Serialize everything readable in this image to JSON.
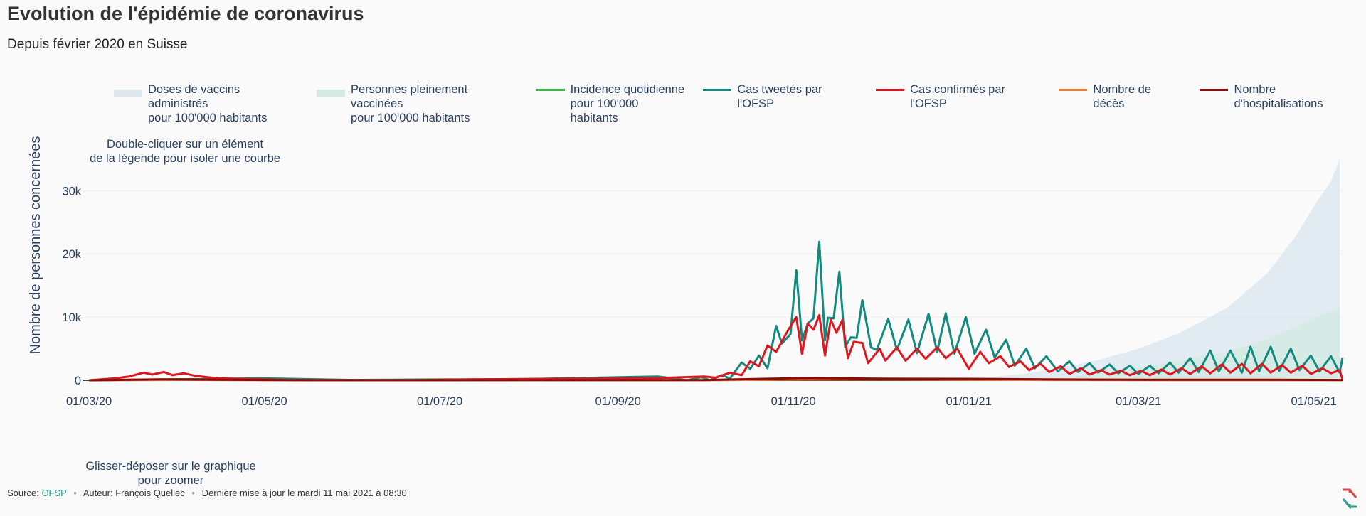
{
  "header": {
    "title": "Evolution de l'épidémie de coronavirus",
    "subtitle": "Depuis février 2020 en Suisse"
  },
  "legend": [
    {
      "label": "Doses de vaccins administrés\npour 100'000 habitants",
      "color": "#dde8ef",
      "kind": "area"
    },
    {
      "label": "Personnes pleinement vaccinées\npour 100'000 habitants",
      "color": "#d4ebe3",
      "kind": "area"
    },
    {
      "label": "Incidence quotidienne\npour 100'000 habitants",
      "color": "#3bb143",
      "kind": "line"
    },
    {
      "label": "Cas tweetés par l'OFSP",
      "color": "#128a7d",
      "kind": "line"
    },
    {
      "label": "Cas confirmés par l'OFSP",
      "color": "#e0161f",
      "kind": "line"
    },
    {
      "label": "Nombre de décès",
      "color": "#f07b32",
      "kind": "line"
    },
    {
      "label": "Nombre d'hospitalisations",
      "color": "#8b0b0b",
      "kind": "line"
    }
  ],
  "hints": {
    "double_click": "Double-cliquer sur un élément\nde la légende pour isoler une courbe",
    "drag": "Glisser-déposer sur le graphique\npour zoomer"
  },
  "footer": {
    "source_label": "Source:",
    "source_link": "OFSP",
    "author": "Auteur: François Quellec",
    "updated": "Dernière mise à jour le mardi 11 mai 2021 à 08:30"
  },
  "chart_data": {
    "type": "line",
    "xlabel": "",
    "ylabel": "Nombre de personnes concernées",
    "x_range": [
      "2020-02-28",
      "2021-05-11"
    ],
    "ylim": [
      0,
      36000
    ],
    "y_ticks": [
      {
        "value": 0,
        "label": "0"
      },
      {
        "value": 10000,
        "label": "10k"
      },
      {
        "value": 20000,
        "label": "20k"
      },
      {
        "value": 30000,
        "label": "30k"
      }
    ],
    "x_ticks": [
      {
        "date": "2020-03-01",
        "label": "01/03/20"
      },
      {
        "date": "2020-05-01",
        "label": "01/05/20"
      },
      {
        "date": "2020-07-01",
        "label": "01/07/20"
      },
      {
        "date": "2020-09-01",
        "label": "01/09/20"
      },
      {
        "date": "2020-11-01",
        "label": "01/11/20"
      },
      {
        "date": "2021-01-01",
        "label": "01/01/21"
      },
      {
        "date": "2021-03-01",
        "label": "01/03/21"
      },
      {
        "date": "2021-05-01",
        "label": "01/05/21"
      }
    ],
    "grid": true,
    "legend_position": "top",
    "series": [
      {
        "name": "Doses de vaccins administrés pour 100'000 habitants",
        "kind": "area",
        "color": "#dde8ef",
        "points": [
          [
            "2020-12-23",
            0
          ],
          [
            "2021-01-05",
            300
          ],
          [
            "2021-01-20",
            1000
          ],
          [
            "2021-02-01",
            1900
          ],
          [
            "2021-02-15",
            3200
          ],
          [
            "2021-03-01",
            5000
          ],
          [
            "2021-03-15",
            7400
          ],
          [
            "2021-04-01",
            11500
          ],
          [
            "2021-04-15",
            17000
          ],
          [
            "2021-04-25",
            23000
          ],
          [
            "2021-05-01",
            27500
          ],
          [
            "2021-05-07",
            31500
          ],
          [
            "2021-05-10",
            35000
          ]
        ]
      },
      {
        "name": "Personnes pleinement vaccinées pour 100'000 habitants",
        "kind": "area",
        "color": "#d4ebe3",
        "points": [
          [
            "2021-01-15",
            0
          ],
          [
            "2021-02-01",
            400
          ],
          [
            "2021-02-15",
            1000
          ],
          [
            "2021-03-01",
            2000
          ],
          [
            "2021-03-15",
            3000
          ],
          [
            "2021-04-01",
            4500
          ],
          [
            "2021-04-15",
            6500
          ],
          [
            "2021-05-01",
            9800
          ],
          [
            "2021-05-10",
            11500
          ]
        ]
      },
      {
        "name": "Cas tweetés par l'OFSP",
        "kind": "line",
        "color": "#128a7d",
        "points": [
          [
            "2020-03-01",
            0
          ],
          [
            "2020-04-10",
            200
          ],
          [
            "2020-05-01",
            300
          ],
          [
            "2020-06-01",
            50
          ],
          [
            "2020-08-01",
            200
          ],
          [
            "2020-09-15",
            600
          ],
          [
            "2020-09-25",
            0
          ],
          [
            "2020-09-30",
            500
          ],
          [
            "2020-10-03",
            0
          ],
          [
            "2020-10-07",
            800
          ],
          [
            "2020-10-10",
            300
          ],
          [
            "2020-10-14",
            2800
          ],
          [
            "2020-10-17",
            1800
          ],
          [
            "2020-10-20",
            3900
          ],
          [
            "2020-10-23",
            1900
          ],
          [
            "2020-10-26",
            8600
          ],
          [
            "2020-10-28",
            5800
          ],
          [
            "2020-10-31",
            7300
          ],
          [
            "2020-11-02",
            17400
          ],
          [
            "2020-11-04",
            6300
          ],
          [
            "2020-11-06",
            9000
          ],
          [
            "2020-11-08",
            9800
          ],
          [
            "2020-11-10",
            21900
          ],
          [
            "2020-11-12",
            6300
          ],
          [
            "2020-11-13",
            9900
          ],
          [
            "2020-11-15",
            9800
          ],
          [
            "2020-11-17",
            17200
          ],
          [
            "2020-11-19",
            5300
          ],
          [
            "2020-11-21",
            6800
          ],
          [
            "2020-11-23",
            6700
          ],
          [
            "2020-11-25",
            12700
          ],
          [
            "2020-11-28",
            5200
          ],
          [
            "2020-11-30",
            4800
          ],
          [
            "2020-12-04",
            9700
          ],
          [
            "2020-12-07",
            4800
          ],
          [
            "2020-12-11",
            9600
          ],
          [
            "2020-12-14",
            4300
          ],
          [
            "2020-12-18",
            10500
          ],
          [
            "2020-12-21",
            4500
          ],
          [
            "2020-12-24",
            10600
          ],
          [
            "2020-12-27",
            4200
          ],
          [
            "2020-12-31",
            10000
          ],
          [
            "2021-01-03",
            4200
          ],
          [
            "2021-01-07",
            8000
          ],
          [
            "2021-01-10",
            3600
          ],
          [
            "2021-01-14",
            6400
          ],
          [
            "2021-01-17",
            2300
          ],
          [
            "2021-01-21",
            5000
          ],
          [
            "2021-01-24",
            1900
          ],
          [
            "2021-01-28",
            3800
          ],
          [
            "2021-02-01",
            1400
          ],
          [
            "2021-02-05",
            3000
          ],
          [
            "2021-02-08",
            1300
          ],
          [
            "2021-02-12",
            2700
          ],
          [
            "2021-02-15",
            1200
          ],
          [
            "2021-02-19",
            2500
          ],
          [
            "2021-02-22",
            1100
          ],
          [
            "2021-02-26",
            2300
          ],
          [
            "2021-03-01",
            1000
          ],
          [
            "2021-03-05",
            2300
          ],
          [
            "2021-03-08",
            1100
          ],
          [
            "2021-03-12",
            2800
          ],
          [
            "2021-03-15",
            1200
          ],
          [
            "2021-03-19",
            3500
          ],
          [
            "2021-03-22",
            1300
          ],
          [
            "2021-03-26",
            4700
          ],
          [
            "2021-03-29",
            1400
          ],
          [
            "2021-04-02",
            4700
          ],
          [
            "2021-04-06",
            1200
          ],
          [
            "2021-04-09",
            5300
          ],
          [
            "2021-04-12",
            1400
          ],
          [
            "2021-04-16",
            5300
          ],
          [
            "2021-04-19",
            1500
          ],
          [
            "2021-04-23",
            5000
          ],
          [
            "2021-04-26",
            1600
          ],
          [
            "2021-04-30",
            3900
          ],
          [
            "2021-05-03",
            1400
          ],
          [
            "2021-05-07",
            3800
          ],
          [
            "2021-05-10",
            1200
          ],
          [
            "2021-05-11",
            3600
          ]
        ]
      },
      {
        "name": "Cas confirmés par l'OFSP",
        "kind": "line",
        "color": "#e0161f",
        "points": [
          [
            "2020-03-01",
            0
          ],
          [
            "2020-03-10",
            300
          ],
          [
            "2020-03-15",
            600
          ],
          [
            "2020-03-20",
            1200
          ],
          [
            "2020-03-23",
            900
          ],
          [
            "2020-03-27",
            1300
          ],
          [
            "2020-03-30",
            800
          ],
          [
            "2020-04-03",
            1100
          ],
          [
            "2020-04-07",
            700
          ],
          [
            "2020-04-11",
            500
          ],
          [
            "2020-04-15",
            300
          ],
          [
            "2020-04-25",
            200
          ],
          [
            "2020-05-10",
            50
          ],
          [
            "2020-06-15",
            0
          ],
          [
            "2020-07-15",
            150
          ],
          [
            "2020-08-15",
            250
          ],
          [
            "2020-09-15",
            350
          ],
          [
            "2020-10-01",
            600
          ],
          [
            "2020-10-05",
            400
          ],
          [
            "2020-10-10",
            1200
          ],
          [
            "2020-10-14",
            800
          ],
          [
            "2020-10-17",
            3000
          ],
          [
            "2020-10-20",
            2200
          ],
          [
            "2020-10-23",
            5500
          ],
          [
            "2020-10-26",
            4500
          ],
          [
            "2020-10-30",
            7800
          ],
          [
            "2020-11-02",
            10000
          ],
          [
            "2020-11-04",
            4200
          ],
          [
            "2020-11-06",
            9000
          ],
          [
            "2020-11-08",
            8000
          ],
          [
            "2020-11-10",
            10300
          ],
          [
            "2020-11-12",
            3900
          ],
          [
            "2020-11-14",
            9600
          ],
          [
            "2020-11-16",
            7500
          ],
          [
            "2020-11-18",
            9500
          ],
          [
            "2020-11-20",
            3500
          ],
          [
            "2020-11-22",
            6100
          ],
          [
            "2020-11-25",
            5900
          ],
          [
            "2020-11-27",
            2700
          ],
          [
            "2020-12-01",
            5000
          ],
          [
            "2020-12-03",
            3100
          ],
          [
            "2020-12-07",
            5200
          ],
          [
            "2020-12-10",
            3100
          ],
          [
            "2020-12-14",
            5000
          ],
          [
            "2020-12-17",
            3400
          ],
          [
            "2020-12-21",
            5200
          ],
          [
            "2020-12-24",
            3500
          ],
          [
            "2020-12-28",
            5000
          ],
          [
            "2021-01-01",
            1800
          ],
          [
            "2021-01-05",
            4500
          ],
          [
            "2021-01-08",
            2700
          ],
          [
            "2021-01-12",
            3800
          ],
          [
            "2021-01-15",
            2100
          ],
          [
            "2021-01-19",
            3000
          ],
          [
            "2021-01-22",
            1600
          ],
          [
            "2021-01-26",
            2600
          ],
          [
            "2021-01-29",
            1300
          ],
          [
            "2021-02-02",
            2200
          ],
          [
            "2021-02-05",
            1000
          ],
          [
            "2021-02-09",
            1900
          ],
          [
            "2021-02-12",
            900
          ],
          [
            "2021-02-16",
            1600
          ],
          [
            "2021-02-19",
            900
          ],
          [
            "2021-02-23",
            1500
          ],
          [
            "2021-02-26",
            800
          ],
          [
            "2021-03-02",
            1500
          ],
          [
            "2021-03-05",
            800
          ],
          [
            "2021-03-09",
            1700
          ],
          [
            "2021-03-12",
            900
          ],
          [
            "2021-03-16",
            1900
          ],
          [
            "2021-03-19",
            1000
          ],
          [
            "2021-03-23",
            2200
          ],
          [
            "2021-03-26",
            1100
          ],
          [
            "2021-03-30",
            2500
          ],
          [
            "2021-04-02",
            1200
          ],
          [
            "2021-04-06",
            2600
          ],
          [
            "2021-04-09",
            1100
          ],
          [
            "2021-04-13",
            2600
          ],
          [
            "2021-04-16",
            1200
          ],
          [
            "2021-04-20",
            2400
          ],
          [
            "2021-04-23",
            1200
          ],
          [
            "2021-04-27",
            2300
          ],
          [
            "2021-04-30",
            1000
          ],
          [
            "2021-05-04",
            1900
          ],
          [
            "2021-05-07",
            1100
          ],
          [
            "2021-05-10",
            1600
          ],
          [
            "2021-05-11",
            100
          ]
        ]
      },
      {
        "name": "Nombre de décès",
        "kind": "line",
        "color": "#f07b32",
        "points": [
          [
            "2020-03-01",
            0
          ],
          [
            "2020-04-01",
            60
          ],
          [
            "2020-05-01",
            10
          ],
          [
            "2020-10-01",
            10
          ],
          [
            "2020-11-05",
            120
          ],
          [
            "2020-12-01",
            140
          ],
          [
            "2021-01-01",
            90
          ],
          [
            "2021-02-01",
            40
          ],
          [
            "2021-03-01",
            20
          ],
          [
            "2021-05-11",
            10
          ]
        ]
      },
      {
        "name": "Nombre d'hospitalisations",
        "kind": "line",
        "color": "#8b0b0b",
        "points": [
          [
            "2020-03-01",
            0
          ],
          [
            "2020-03-25",
            150
          ],
          [
            "2020-04-15",
            80
          ],
          [
            "2020-05-15",
            10
          ],
          [
            "2020-10-01",
            30
          ],
          [
            "2020-11-05",
            350
          ],
          [
            "2020-12-01",
            250
          ],
          [
            "2021-01-01",
            220
          ],
          [
            "2021-02-01",
            120
          ],
          [
            "2021-03-01",
            80
          ],
          [
            "2021-04-15",
            90
          ],
          [
            "2021-05-11",
            40
          ]
        ]
      }
    ]
  }
}
